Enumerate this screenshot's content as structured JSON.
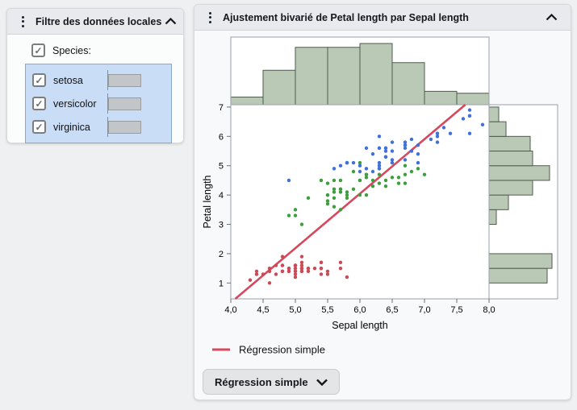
{
  "icons": {
    "check": "✓"
  },
  "filter_panel": {
    "title": "Filtre des données locales",
    "group": {
      "label": "Species:",
      "checked": true
    },
    "items": [
      {
        "label": "setosa",
        "checked": true
      },
      {
        "label": "versicolor",
        "checked": true
      },
      {
        "label": "virginica",
        "checked": true
      }
    ]
  },
  "main_panel": {
    "title": "Ajustement bivarié de Petal length par Sepal length",
    "fit_menu_button": {
      "label": "Régression simple"
    }
  },
  "chart_data": {
    "type": "scatter",
    "xlabel": "Sepal length",
    "ylabel": "Petal length",
    "xlim": [
      4.0,
      8.0
    ],
    "ylim": [
      0.46,
      7.08
    ],
    "grid": false,
    "x_ticks": {
      "values": [
        4.0,
        4.5,
        5.0,
        5.5,
        6.0,
        6.5,
        7.0,
        7.5,
        8.0
      ],
      "labels": [
        "4,0",
        "4,5",
        "5,0",
        "5,5",
        "6,0",
        "6,5",
        "7,0",
        "7,5",
        "8,0"
      ]
    },
    "y_ticks": {
      "values": [
        1,
        2,
        3,
        4,
        5,
        6,
        7
      ],
      "labels": [
        "1",
        "2",
        "3",
        "4",
        "5",
        "6",
        "7"
      ]
    },
    "regression": {
      "label": "Régression simple",
      "slope": 1.858,
      "intercept": -7.101,
      "color": "#d6485e"
    },
    "legend_position": "bottom-left",
    "marginal_x_histogram": {
      "variable": "Sepal length",
      "bin_start": 4.0,
      "bin_width": 0.5,
      "counts": [
        4,
        18,
        30,
        30,
        32,
        22,
        7,
        6
      ],
      "fill": "#b9c9b5",
      "stroke": "#4f5b4d"
    },
    "marginal_y_histogram": {
      "variable": "Petal length",
      "bin_start": 1.0,
      "bin_width": 0.5,
      "counts": [
        24,
        26,
        0,
        0,
        3,
        8,
        18,
        25,
        18,
        17,
        7,
        4
      ],
      "fill": "#b9c9b5",
      "stroke": "#4f5b4d"
    },
    "series": [
      {
        "name": "setosa",
        "color": "#ca4a56",
        "points": [
          [
            5.1,
            1.4
          ],
          [
            4.9,
            1.4
          ],
          [
            4.7,
            1.3
          ],
          [
            4.6,
            1.5
          ],
          [
            5.0,
            1.4
          ],
          [
            5.4,
            1.7
          ],
          [
            4.6,
            1.4
          ],
          [
            5.0,
            1.5
          ],
          [
            4.4,
            1.4
          ],
          [
            4.9,
            1.5
          ],
          [
            5.4,
            1.5
          ],
          [
            4.8,
            1.6
          ],
          [
            4.8,
            1.4
          ],
          [
            4.3,
            1.1
          ],
          [
            5.8,
            1.2
          ],
          [
            5.7,
            1.5
          ],
          [
            5.4,
            1.3
          ],
          [
            5.1,
            1.4
          ],
          [
            5.7,
            1.7
          ],
          [
            5.1,
            1.5
          ],
          [
            5.4,
            1.7
          ],
          [
            5.1,
            1.5
          ],
          [
            4.6,
            1.0
          ],
          [
            5.1,
            1.7
          ],
          [
            4.8,
            1.9
          ],
          [
            5.0,
            1.6
          ],
          [
            5.0,
            1.6
          ],
          [
            5.2,
            1.5
          ],
          [
            5.2,
            1.4
          ],
          [
            4.7,
            1.6
          ],
          [
            4.8,
            1.6
          ],
          [
            5.4,
            1.5
          ],
          [
            5.2,
            1.5
          ],
          [
            5.5,
            1.4
          ],
          [
            4.9,
            1.5
          ],
          [
            5.0,
            1.2
          ],
          [
            5.5,
            1.3
          ],
          [
            4.9,
            1.4
          ],
          [
            4.4,
            1.3
          ],
          [
            5.1,
            1.5
          ],
          [
            5.0,
            1.3
          ],
          [
            4.5,
            1.3
          ],
          [
            4.4,
            1.3
          ],
          [
            5.0,
            1.6
          ],
          [
            5.1,
            1.9
          ],
          [
            4.8,
            1.4
          ],
          [
            5.1,
            1.6
          ],
          [
            4.6,
            1.4
          ],
          [
            5.3,
            1.5
          ],
          [
            5.0,
            1.4
          ]
        ]
      },
      {
        "name": "versicolor",
        "color": "#3c9e3c",
        "points": [
          [
            7.0,
            4.7
          ],
          [
            6.4,
            4.5
          ],
          [
            6.9,
            4.9
          ],
          [
            5.5,
            4.0
          ],
          [
            6.5,
            4.6
          ],
          [
            5.7,
            4.5
          ],
          [
            6.3,
            4.7
          ],
          [
            4.9,
            3.3
          ],
          [
            6.6,
            4.6
          ],
          [
            5.2,
            3.9
          ],
          [
            5.0,
            3.5
          ],
          [
            5.9,
            4.2
          ],
          [
            6.0,
            4.0
          ],
          [
            6.1,
            4.7
          ],
          [
            5.6,
            3.6
          ],
          [
            6.7,
            4.4
          ],
          [
            5.6,
            4.5
          ],
          [
            5.8,
            4.1
          ],
          [
            6.2,
            4.5
          ],
          [
            5.6,
            3.9
          ],
          [
            5.9,
            4.8
          ],
          [
            6.1,
            4.0
          ],
          [
            6.3,
            4.9
          ],
          [
            6.1,
            4.7
          ],
          [
            6.4,
            4.3
          ],
          [
            6.6,
            4.4
          ],
          [
            6.8,
            4.8
          ],
          [
            6.7,
            5.0
          ],
          [
            6.0,
            4.5
          ],
          [
            5.7,
            3.5
          ],
          [
            5.5,
            3.8
          ],
          [
            5.5,
            3.7
          ],
          [
            5.8,
            3.9
          ],
          [
            6.0,
            5.1
          ],
          [
            5.4,
            4.5
          ],
          [
            6.0,
            4.5
          ],
          [
            6.7,
            4.7
          ],
          [
            6.3,
            4.4
          ],
          [
            5.6,
            4.1
          ],
          [
            5.5,
            4.0
          ],
          [
            5.5,
            4.4
          ],
          [
            6.1,
            4.6
          ],
          [
            5.8,
            4.0
          ],
          [
            5.0,
            3.3
          ],
          [
            5.6,
            4.2
          ],
          [
            5.7,
            4.2
          ],
          [
            5.7,
            4.2
          ],
          [
            6.2,
            4.3
          ],
          [
            5.1,
            3.0
          ],
          [
            5.7,
            4.1
          ]
        ]
      },
      {
        "name": "virginica",
        "color": "#4070d8",
        "points": [
          [
            6.3,
            6.0
          ],
          [
            5.8,
            5.1
          ],
          [
            7.1,
            5.9
          ],
          [
            6.3,
            5.6
          ],
          [
            6.5,
            5.8
          ],
          [
            7.6,
            6.6
          ],
          [
            4.9,
            4.5
          ],
          [
            7.3,
            6.3
          ],
          [
            6.7,
            5.8
          ],
          [
            7.2,
            6.1
          ],
          [
            6.5,
            5.1
          ],
          [
            6.4,
            5.3
          ],
          [
            6.8,
            5.5
          ],
          [
            5.7,
            5.0
          ],
          [
            5.8,
            5.1
          ],
          [
            6.4,
            5.3
          ],
          [
            6.5,
            5.5
          ],
          [
            7.7,
            6.7
          ],
          [
            7.7,
            6.9
          ],
          [
            6.0,
            5.0
          ],
          [
            6.9,
            5.7
          ],
          [
            5.6,
            4.9
          ],
          [
            7.7,
            6.7
          ],
          [
            6.3,
            4.9
          ],
          [
            6.7,
            5.7
          ],
          [
            7.2,
            6.0
          ],
          [
            6.2,
            4.8
          ],
          [
            6.1,
            4.9
          ],
          [
            6.4,
            5.6
          ],
          [
            7.2,
            5.8
          ],
          [
            7.4,
            6.1
          ],
          [
            7.9,
            6.4
          ],
          [
            6.4,
            5.6
          ],
          [
            6.3,
            5.1
          ],
          [
            6.1,
            5.6
          ],
          [
            7.7,
            6.1
          ],
          [
            6.3,
            5.6
          ],
          [
            6.4,
            5.5
          ],
          [
            6.0,
            4.8
          ],
          [
            6.9,
            5.4
          ],
          [
            6.7,
            5.6
          ],
          [
            6.9,
            5.1
          ],
          [
            5.8,
            5.1
          ],
          [
            6.8,
            5.9
          ],
          [
            6.7,
            5.7
          ],
          [
            6.7,
            5.2
          ],
          [
            6.3,
            5.0
          ],
          [
            6.5,
            5.2
          ],
          [
            6.2,
            5.4
          ],
          [
            5.9,
            5.1
          ]
        ]
      }
    ]
  }
}
